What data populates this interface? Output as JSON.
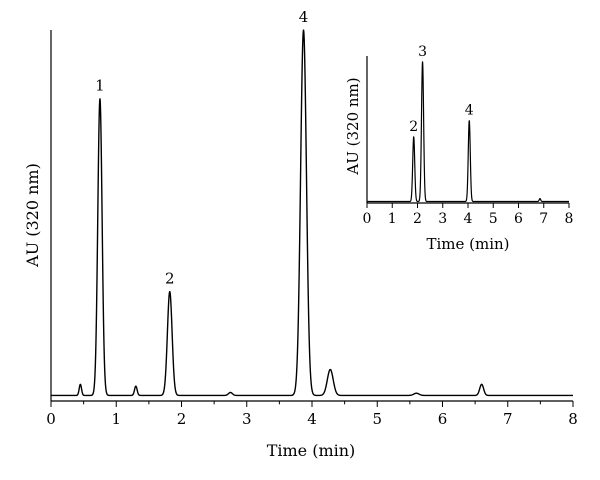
{
  "chart_data": [
    {
      "type": "line",
      "title": "",
      "xlabel": "Time (min)",
      "ylabel": "AU (320 nm)",
      "xlim": [
        0,
        8
      ],
      "ylim": [
        0,
        1
      ],
      "xticks": [
        "0",
        "1",
        "2",
        "3",
        "4",
        "5",
        "6",
        "7",
        "8"
      ],
      "yticks": [],
      "grid": false,
      "legend": "none",
      "line_color": "#000000",
      "baseline": 0.015,
      "peaks": [
        {
          "t": 0.45,
          "h": 0.03,
          "w": 0.018
        },
        {
          "t": 0.75,
          "h": 0.8,
          "w": 0.033,
          "label": "1"
        },
        {
          "t": 1.3,
          "h": 0.025,
          "w": 0.02
        },
        {
          "t": 1.82,
          "h": 0.28,
          "w": 0.036,
          "label": "2"
        },
        {
          "t": 2.75,
          "h": 0.008,
          "w": 0.03
        },
        {
          "t": 3.87,
          "h": 0.985,
          "w": 0.045,
          "label": "4"
        },
        {
          "t": 4.28,
          "h": 0.07,
          "w": 0.045
        },
        {
          "t": 5.6,
          "h": 0.006,
          "w": 0.04
        },
        {
          "t": 6.6,
          "h": 0.03,
          "w": 0.03
        }
      ]
    },
    {
      "type": "line",
      "title": "",
      "xlabel": "Time (min)",
      "ylabel": "AU (320 nm)",
      "xlim": [
        0,
        8
      ],
      "ylim": [
        0,
        1
      ],
      "xticks": [
        "0",
        "1",
        "2",
        "3",
        "4",
        "5",
        "6",
        "7",
        "8"
      ],
      "yticks": [],
      "grid": false,
      "legend": "none",
      "line_color": "#000000",
      "baseline": 0.01,
      "peaks": [
        {
          "t": 1.85,
          "h": 0.44,
          "w": 0.04,
          "label": "2"
        },
        {
          "t": 2.2,
          "h": 0.95,
          "w": 0.042,
          "label": "3"
        },
        {
          "t": 4.05,
          "h": 0.55,
          "w": 0.04,
          "label": "4"
        },
        {
          "t": 6.85,
          "h": 0.02,
          "w": 0.03
        }
      ]
    }
  ]
}
